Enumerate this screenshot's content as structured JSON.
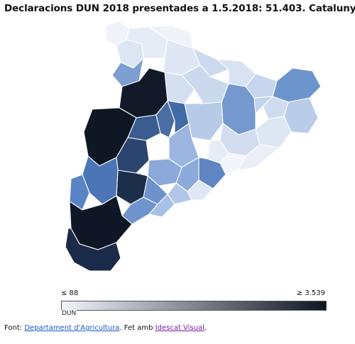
{
  "title": "Declaracions DUN 2018 presentades a 1.5.2018: 51.403. Catalunya",
  "legend": {
    "min_label": "≤ 88",
    "max_label": "≥ 3.539",
    "variable_label": "DUN",
    "colors": [
      "#f2f5fb",
      "#0e1522"
    ]
  },
  "source": {
    "prefix": "Font: ",
    "link1": "Departament d'Agricultura",
    "middle": ". Fet amb ",
    "link2": "Idescat Visual",
    "suffix": "."
  }
}
